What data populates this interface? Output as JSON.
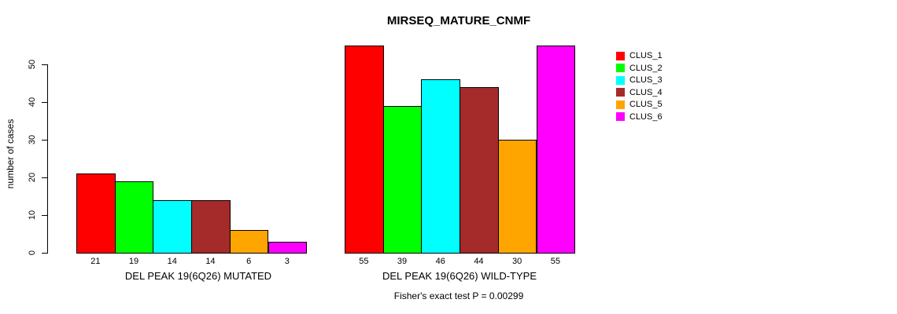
{
  "chart_data": {
    "type": "bar",
    "title": "MIRSEQ_MATURE_CNMF",
    "ylabel": "number of cases",
    "ylim": [
      0,
      55
    ],
    "yticks": [
      0,
      10,
      20,
      30,
      40,
      50
    ],
    "grid": false,
    "legend_position": "right",
    "categories": [
      "DEL PEAK 19(6Q26) MUTATED",
      "DEL PEAK 19(6Q26) WILD-TYPE"
    ],
    "series": [
      {
        "name": "CLUS_1",
        "color": "#FF0000",
        "values": [
          21,
          55
        ]
      },
      {
        "name": "CLUS_2",
        "color": "#00FF00",
        "values": [
          19,
          39
        ]
      },
      {
        "name": "CLUS_3",
        "color": "#00FFFF",
        "values": [
          14,
          46
        ]
      },
      {
        "name": "CLUS_4",
        "color": "#A52A2A",
        "values": [
          14,
          44
        ]
      },
      {
        "name": "CLUS_5",
        "color": "#FFA500",
        "values": [
          6,
          30
        ]
      },
      {
        "name": "CLUS_6",
        "color": "#FF00FF",
        "values": [
          3,
          55
        ]
      }
    ],
    "bar_value_labels": {
      "group1": [
        21,
        19,
        14,
        14,
        6,
        3
      ],
      "group2": [
        55,
        39,
        46,
        44,
        30,
        55
      ]
    },
    "annotation": "Fisher's exact test P = 0.00299"
  }
}
